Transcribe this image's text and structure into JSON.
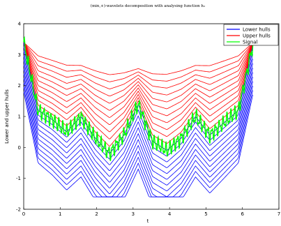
{
  "chart_data": {
    "type": "line",
    "title": "(min,+)-wavelets decomposition with analysing function  h₂",
    "xlabel": "t",
    "ylabel": "Lower and upper hulls",
    "xlim": [
      0,
      7
    ],
    "ylim": [
      -2,
      4
    ],
    "x_ticks": [
      "0",
      "1",
      "2",
      "3",
      "4",
      "5",
      "6",
      "7"
    ],
    "y_ticks": [
      "-2",
      "-1",
      "0",
      "1",
      "2",
      "3",
      "4"
    ],
    "grid": false,
    "legend_position": "top-right",
    "series": [
      {
        "name": "Lower hulls",
        "color": "#0000ff"
      },
      {
        "name": "Upper hulls",
        "color": "#ff0000"
      },
      {
        "name": "Signal",
        "color": "#00ff00"
      }
    ],
    "signal_samples": {
      "x": [
        0,
        0.393,
        0.785,
        1.178,
        1.571,
        1.963,
        2.356,
        2.749,
        3.142,
        3.534,
        3.927,
        4.32,
        4.712,
        5.105,
        5.498,
        5.89,
        6.283
      ],
      "y": [
        3.4,
        1.2,
        0.9,
        0.5,
        1.0,
        0.3,
        -0.2,
        0.4,
        1.4,
        0.2,
        -0.1,
        0.3,
        1.0,
        0.4,
        0.8,
        1.2,
        3.3
      ]
    },
    "hull_levels": 12,
    "upper_hull_top": 3.4,
    "upper_hull_center": 1.4,
    "lower_hull_bottom": -1.6,
    "lower_hull_center_bottom": -1.2
  }
}
